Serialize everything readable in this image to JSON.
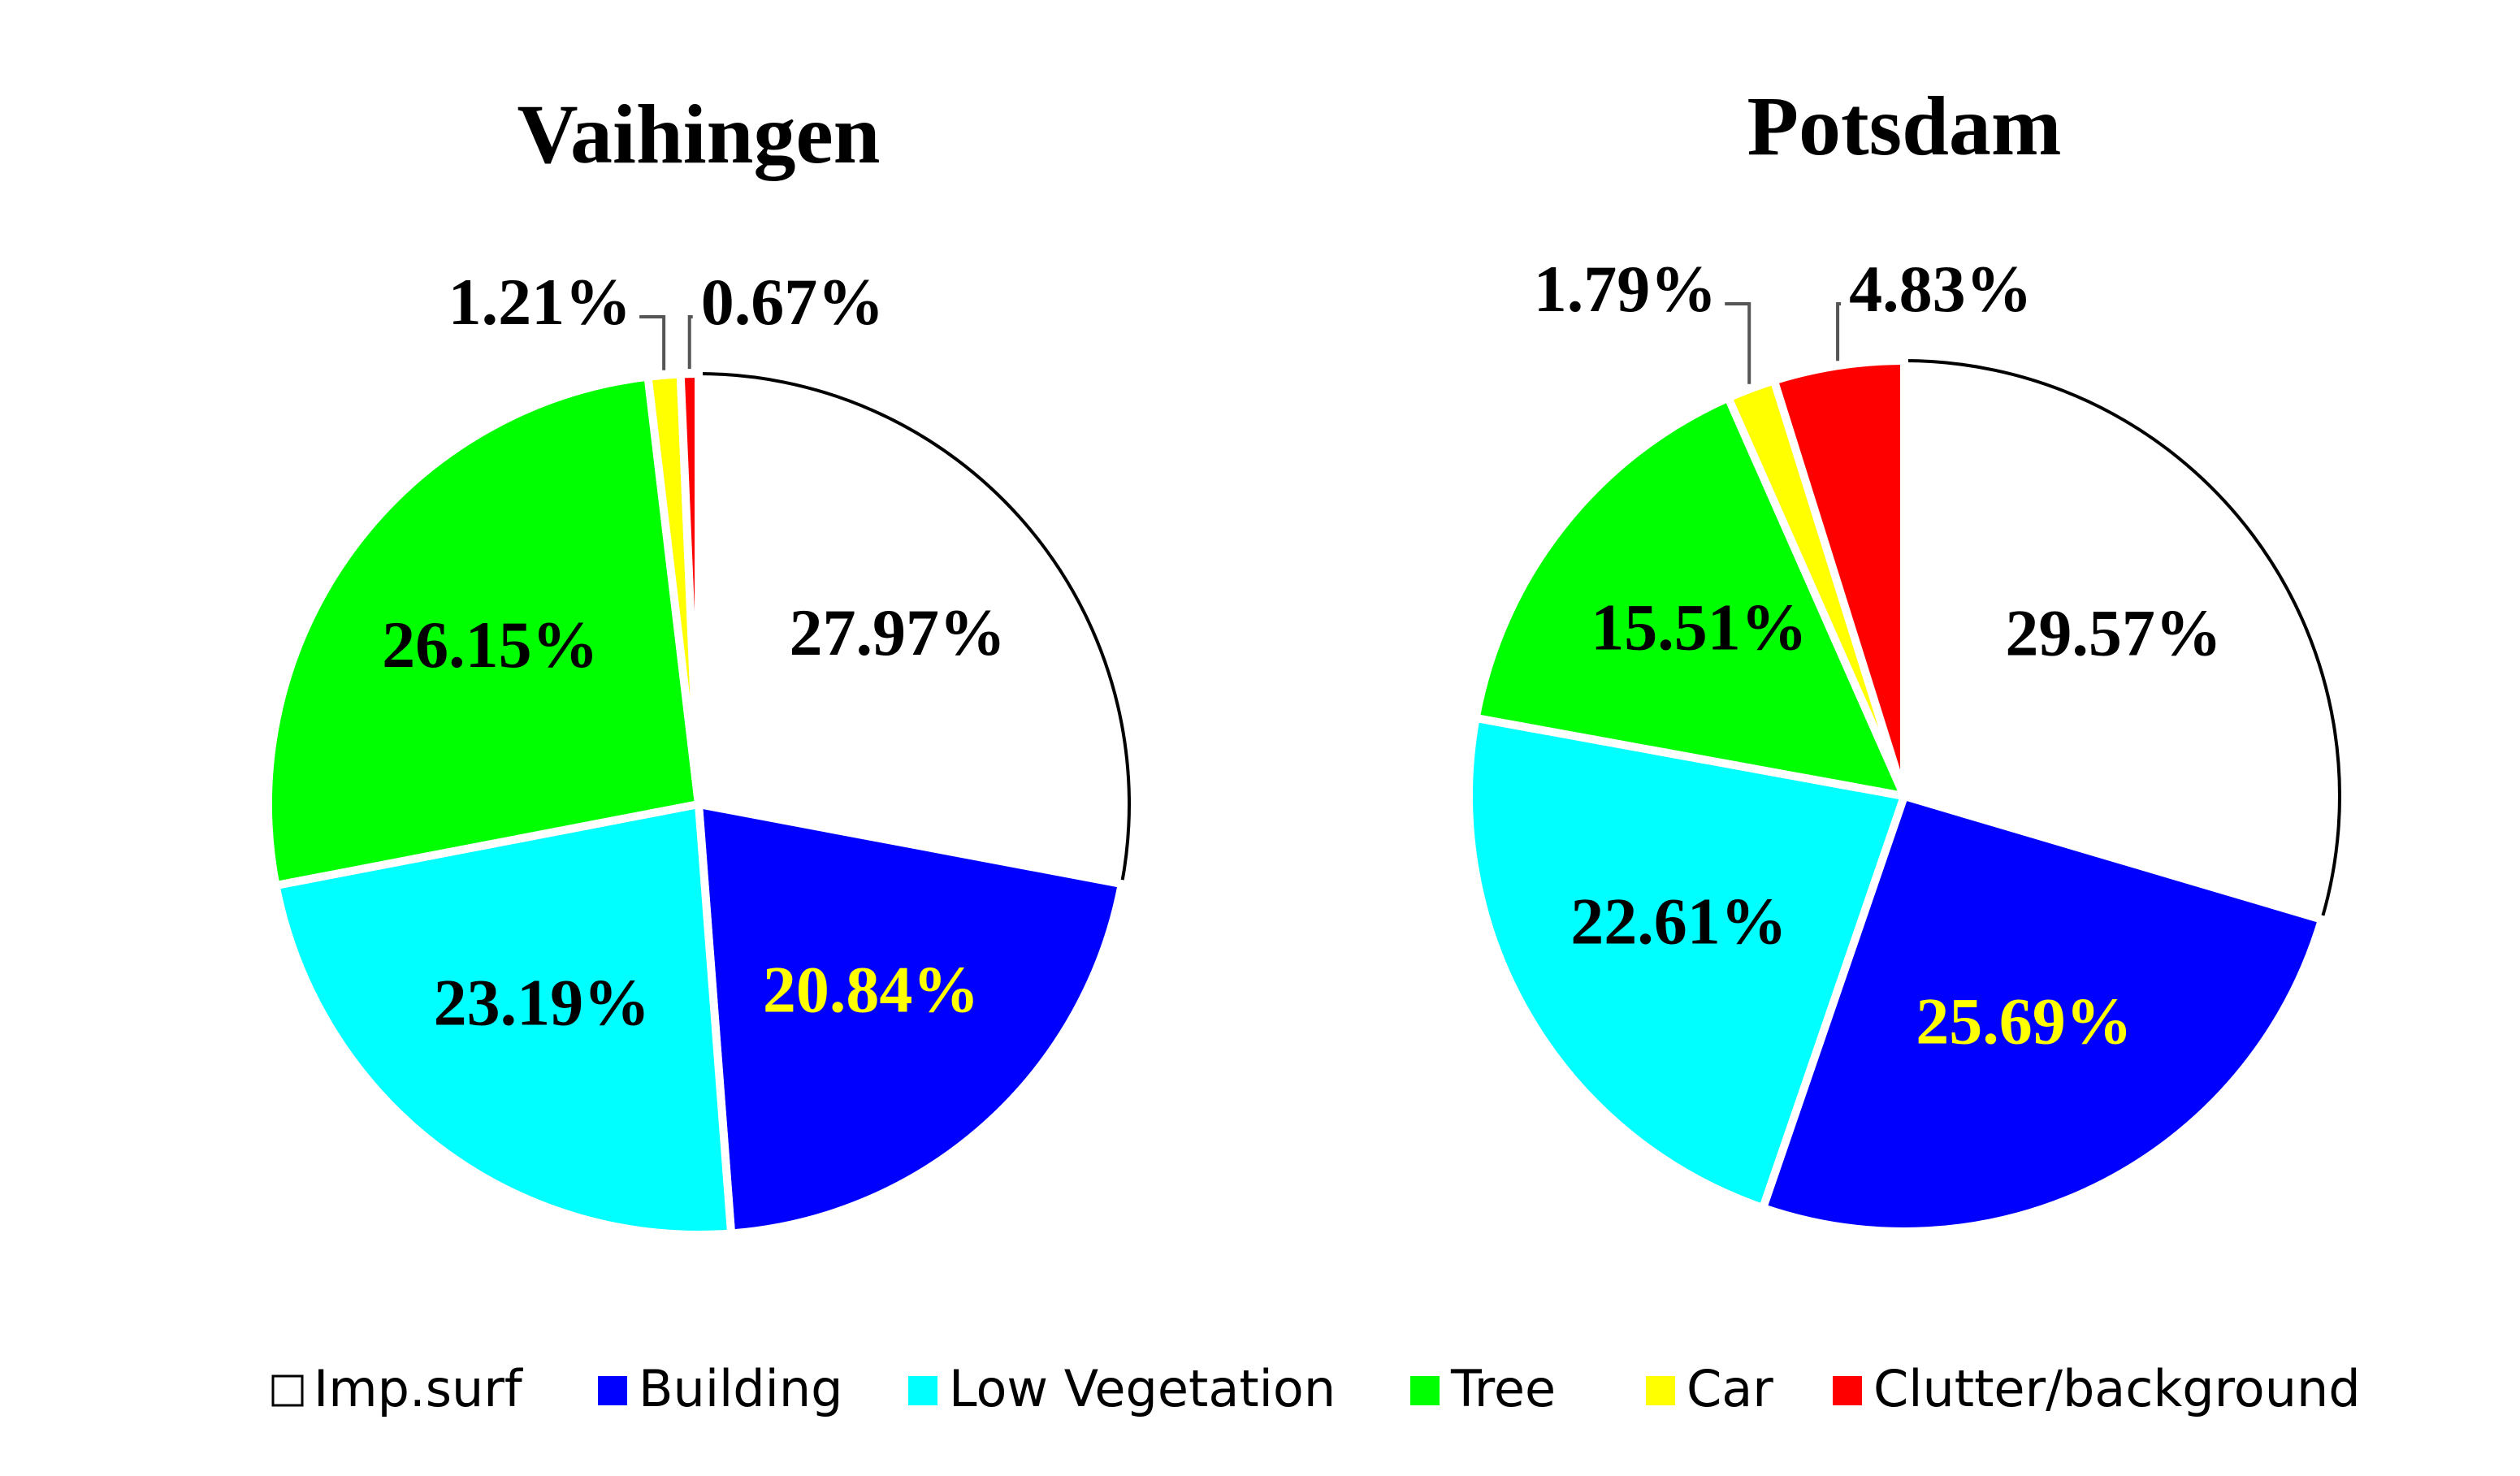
{
  "chart_data": [
    {
      "type": "pie",
      "title": "Vaihingen",
      "categories": [
        "Imp.surf",
        "Building",
        "Low Vegetation",
        "Tree",
        "Car",
        "Clutter/background"
      ],
      "values": [
        27.97,
        20.84,
        23.19,
        26.15,
        1.21,
        0.67
      ],
      "value_labels": [
        "27.97%",
        "20.84%",
        "23.19%",
        "26.15%",
        "1.21%",
        "0.67%"
      ],
      "colors": [
        "#ffffff",
        "#0000ff",
        "#00ffff",
        "#00ff00",
        "#ffff00",
        "#ff0000"
      ],
      "label_colors": [
        "#000000",
        "#ffff00",
        "#000000",
        "#000000",
        "#000000",
        "#000000"
      ]
    },
    {
      "type": "pie",
      "title": "Potsdam",
      "categories": [
        "Imp.surf",
        "Building",
        "Low Vegetation",
        "Tree",
        "Car",
        "Clutter/background"
      ],
      "values": [
        29.57,
        25.69,
        22.61,
        15.51,
        1.79,
        4.83
      ],
      "value_labels": [
        "29.57%",
        "25.69%",
        "22.61%",
        "15.51%",
        "1.79%",
        "4.83%"
      ],
      "colors": [
        "#ffffff",
        "#0000ff",
        "#00ffff",
        "#00ff00",
        "#ffff00",
        "#ff0000"
      ],
      "label_colors": [
        "#000000",
        "#ffff00",
        "#000000",
        "#000000",
        "#000000",
        "#000000"
      ]
    }
  ]
}
